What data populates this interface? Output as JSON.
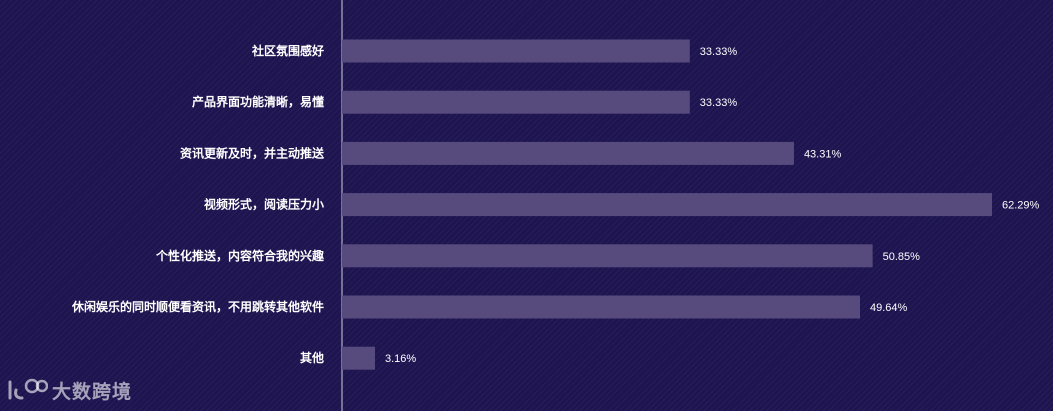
{
  "chart_data": {
    "type": "bar",
    "orientation": "horizontal",
    "categories": [
      "社区氛围感好",
      "产品界面功能清晰，易懂",
      "资讯更新及时，并主动推送",
      "视频形式，阅读压力小",
      "个性化推送，内容符合我的兴趣",
      "休闲娱乐的同时顺便看资讯，不用跳转其他软件",
      "其他"
    ],
    "values": [
      33.33,
      33.33,
      43.31,
      62.29,
      50.85,
      49.64,
      3.16
    ],
    "value_labels": [
      "33.33%",
      "33.33%",
      "43.31%",
      "62.29%",
      "50.85%",
      "49.64%",
      "3.16%"
    ],
    "xlim": [
      0,
      62.29
    ],
    "grid": false,
    "colors": {
      "background": "#1d1450",
      "bar": "#574b7e",
      "axis": "#cfcfd8",
      "text": "#ffffff"
    }
  },
  "watermark": {
    "text": "大数跨境"
  }
}
